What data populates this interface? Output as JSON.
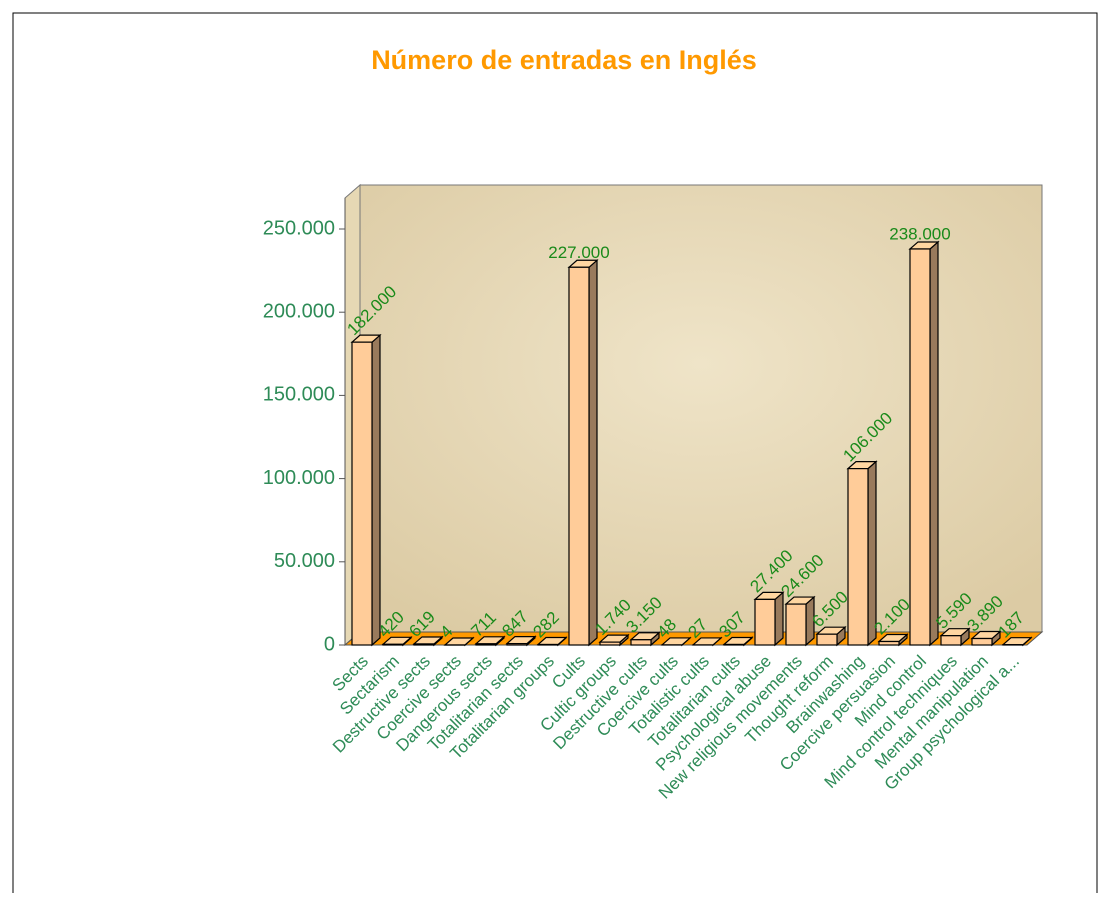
{
  "chart_data": {
    "type": "bar3d",
    "title": "Número de entradas en Inglés",
    "categories": [
      "Sects",
      "Sectarism",
      "Destructive sects",
      "Coercive sects",
      "Dangerous sects",
      "Totalitarian sects",
      "Totalitarian groups",
      "Cults",
      "Cultic groups",
      "Destructive cults",
      "Coercive cults",
      "Totalistic cults",
      "Totalitarian cults",
      "Psychological abuse",
      "New religious movements",
      "Thought reform",
      "Brainwashing",
      "Coercive persuasion",
      "Mind control",
      "Mind control techniques",
      "Mental manipulation",
      "Group psychological a..."
    ],
    "values": [
      182000,
      420,
      619,
      4,
      711,
      847,
      282,
      227000,
      1740,
      3150,
      48,
      27,
      307,
      27400,
      24600,
      6500,
      106000,
      2100,
      238000,
      5590,
      3890,
      187
    ],
    "value_labels": [
      "182.000",
      "420",
      "619",
      "4",
      "711",
      "847",
      "282",
      "227.000",
      "1.740",
      "3.150",
      "48",
      "27",
      "307",
      "27.400",
      "24.600",
      "6.500",
      "106.000",
      "2.100",
      "238.000",
      "5.590",
      "3.890",
      "187"
    ],
    "color": "#ffcc99",
    "ylim": [
      0,
      250000
    ],
    "yticks": [
      0,
      {
        "value": 50000,
        "label": "50.000"
      },
      {
        "value": 100000,
        "label": "100.000"
      },
      {
        "value": 150000,
        "label": "150.000"
      },
      {
        "value": 200000,
        "label": "200.000"
      },
      {
        "value": 250000,
        "label": "250.000"
      }
    ]
  }
}
